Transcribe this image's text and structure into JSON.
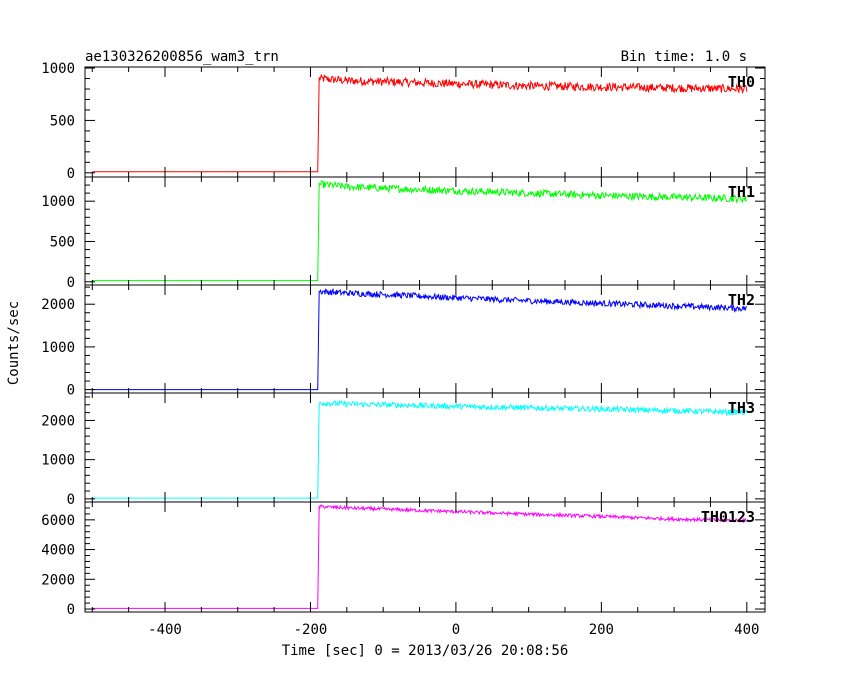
{
  "chart_data": {
    "type": "line",
    "title": "ae130326200856_wam3_trn",
    "subtitle": "Bin time: 1.0 s",
    "xlabel": "Time [sec] 0 = 2013/03/26 20:08:56",
    "ylabel": "Counts/sec",
    "xlim": [
      -510,
      425
    ],
    "xticks": [
      -400,
      -200,
      0,
      200,
      400
    ],
    "grid": false,
    "panels": [
      {
        "name": "TH0",
        "color": "#ff0000",
        "ylim": [
          -40,
          1010
        ],
        "yticks": [
          0,
          500,
          1000
        ],
        "points": [
          [
            -500,
            10
          ],
          [
            -190,
            10
          ],
          [
            -188,
            900
          ],
          [
            -150,
            880
          ],
          [
            -100,
            870
          ],
          [
            0,
            850
          ],
          [
            100,
            830
          ],
          [
            200,
            820
          ],
          [
            300,
            810
          ],
          [
            400,
            800
          ]
        ],
        "noise": 40
      },
      {
        "name": "TH1",
        "color": "#00ff00",
        "ylim": [
          -40,
          1300
        ],
        "yticks": [
          0,
          500,
          1000
        ],
        "points": [
          [
            -500,
            15
          ],
          [
            -190,
            15
          ],
          [
            -188,
            1210
          ],
          [
            -150,
            1180
          ],
          [
            -100,
            1160
          ],
          [
            0,
            1130
          ],
          [
            100,
            1100
          ],
          [
            200,
            1070
          ],
          [
            300,
            1050
          ],
          [
            400,
            1030
          ]
        ],
        "noise": 45
      },
      {
        "name": "TH2",
        "color": "#0000ff",
        "ylim": [
          -80,
          2450
        ],
        "yticks": [
          0,
          1000,
          2000
        ],
        "points": [
          [
            -500,
            0
          ],
          [
            -190,
            0
          ],
          [
            -188,
            2300
          ],
          [
            -150,
            2260
          ],
          [
            -100,
            2230
          ],
          [
            0,
            2150
          ],
          [
            100,
            2080
          ],
          [
            200,
            2020
          ],
          [
            300,
            1960
          ],
          [
            400,
            1900
          ]
        ],
        "noise": 70
      },
      {
        "name": "TH3",
        "color": "#00ffff",
        "ylim": [
          -80,
          2700
        ],
        "yticks": [
          0,
          1000,
          2000
        ],
        "points": [
          [
            -500,
            20
          ],
          [
            -190,
            20
          ],
          [
            -188,
            2450
          ],
          [
            -150,
            2420
          ],
          [
            -100,
            2400
          ],
          [
            0,
            2360
          ],
          [
            100,
            2320
          ],
          [
            200,
            2290
          ],
          [
            300,
            2250
          ],
          [
            400,
            2200
          ]
        ],
        "noise": 70
      },
      {
        "name": "TH0123",
        "color": "#ff00ff",
        "ylim": [
          -200,
          7200
        ],
        "yticks": [
          0,
          2000,
          4000,
          6000
        ],
        "points": [
          [
            -500,
            40
          ],
          [
            -190,
            40
          ],
          [
            -188,
            6900
          ],
          [
            -150,
            6800
          ],
          [
            -100,
            6720
          ],
          [
            0,
            6550
          ],
          [
            100,
            6380
          ],
          [
            200,
            6230
          ],
          [
            300,
            6050
          ],
          [
            400,
            5950
          ]
        ],
        "noise": 110
      }
    ]
  }
}
